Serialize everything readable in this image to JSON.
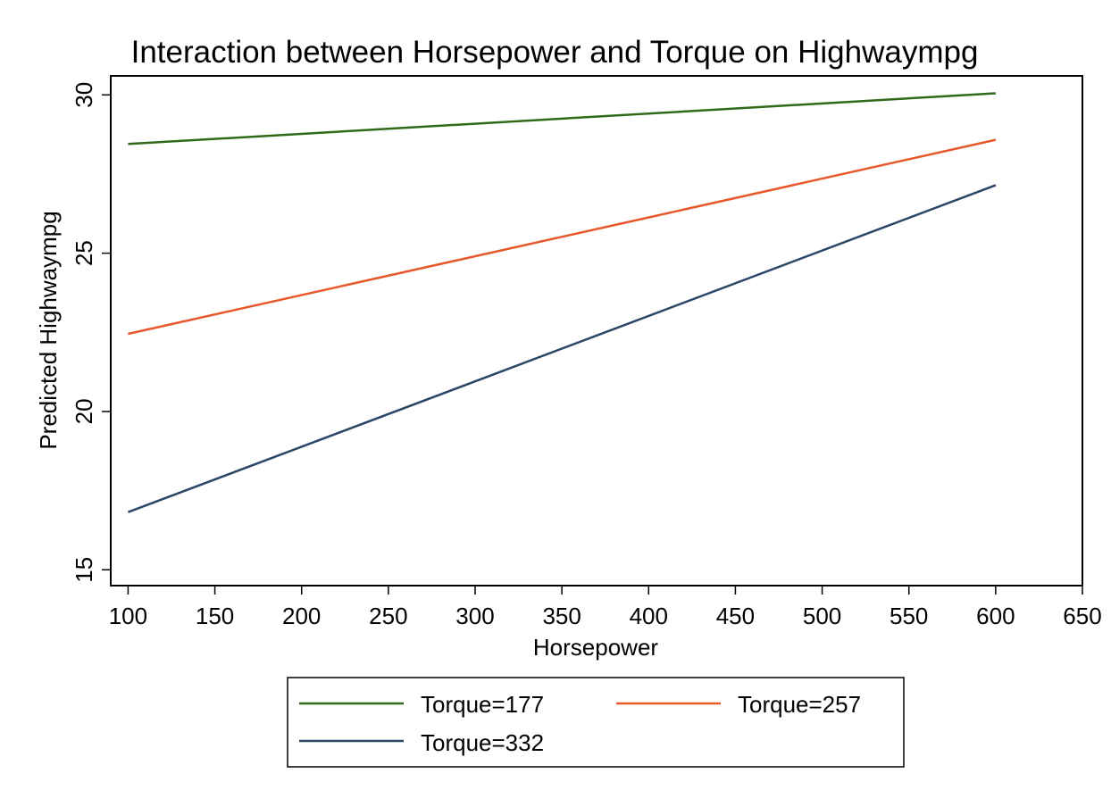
{
  "chart_data": {
    "type": "line",
    "title": "Interaction between Horsepower and Torque on Highwaympg",
    "xlabel": "Horsepower",
    "ylabel": "Predicted Highwaympg",
    "xlim": [
      90,
      650
    ],
    "ylim": [
      14.5,
      30.6
    ],
    "xticks": [
      100,
      150,
      200,
      250,
      300,
      350,
      400,
      450,
      500,
      550,
      600,
      650
    ],
    "yticks": [
      15,
      20,
      25,
      30
    ],
    "grid": false,
    "legend_position": "bottom",
    "series": [
      {
        "name": "Torque=177",
        "color": "#2f6a1b",
        "x": [
          100,
          600
        ],
        "y": [
          28.45,
          30.05
        ]
      },
      {
        "name": "Torque=257",
        "color": "#e6572a",
        "x": [
          100,
          600
        ],
        "y": [
          22.45,
          28.58
        ]
      },
      {
        "name": "Torque=332",
        "color": "#2c4666",
        "x": [
          100,
          600
        ],
        "y": [
          16.82,
          27.15
        ]
      }
    ]
  }
}
